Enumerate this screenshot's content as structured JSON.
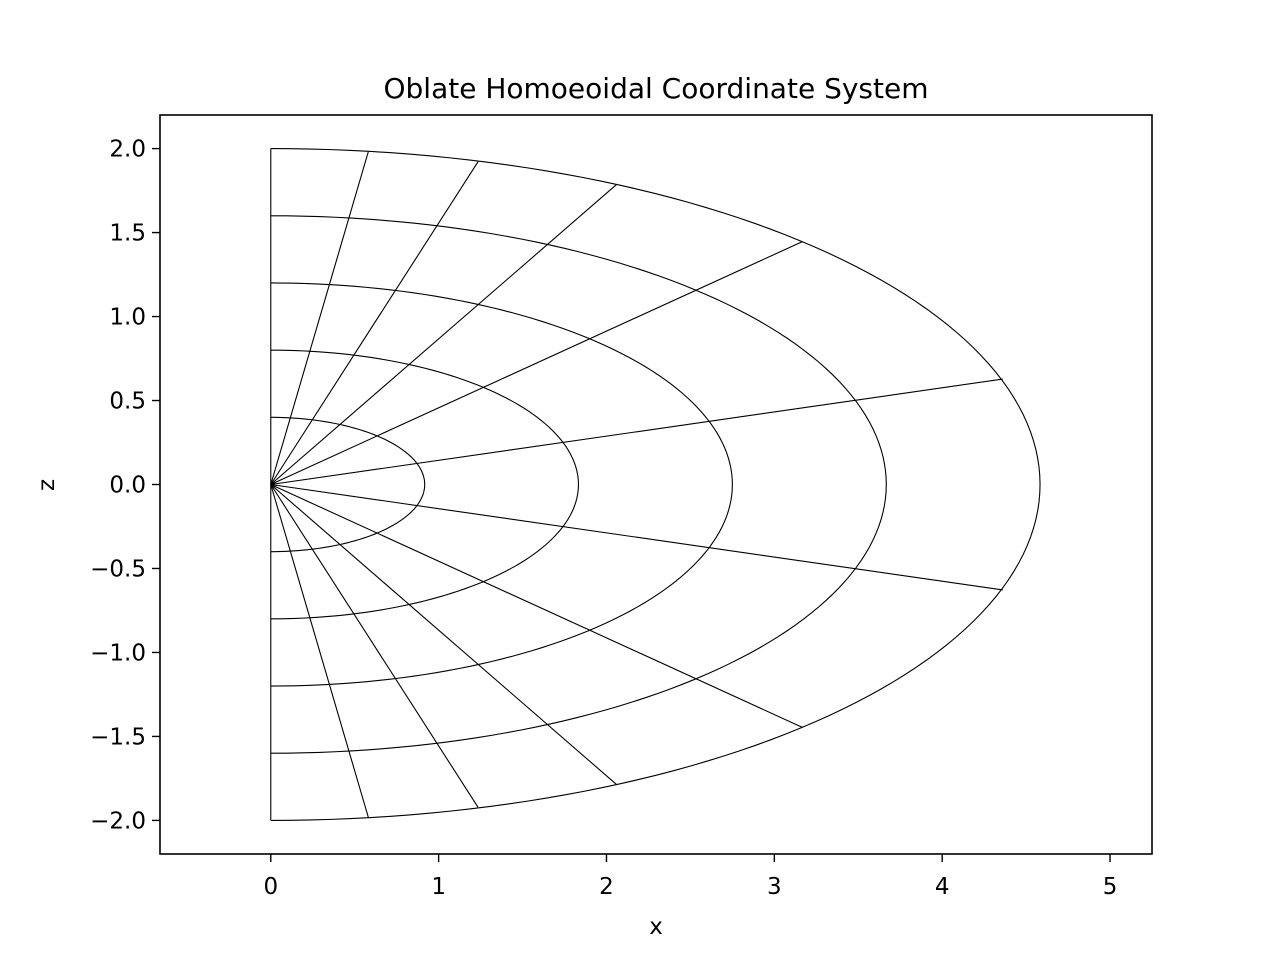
{
  "chart_data": {
    "type": "line",
    "title": "Oblate Homoeoidal Coordinate System",
    "xlabel": "x",
    "ylabel": "z",
    "xlim": [
      -0.66,
      5.25
    ],
    "ylim": [
      -2.2,
      2.2
    ],
    "xticks": [
      0,
      1,
      2,
      3,
      4,
      5
    ],
    "yticks": [
      -2.0,
      -1.5,
      -1.0,
      -0.5,
      0.0,
      0.5,
      1.0,
      1.5,
      2.0
    ],
    "xtick_labels": [
      "0",
      "1",
      "2",
      "3",
      "4",
      "5"
    ],
    "ytick_labels": [
      "−2.0",
      "−1.5",
      "−1.0",
      "−0.5",
      "0.0",
      "0.5",
      "1.0",
      "1.5",
      "2.0"
    ],
    "grid": false,
    "line_color": "#000000",
    "shells": {
      "description_values": "semi-axes of homoeoidal ellipses (x-extent a, z-extent c), right half",
      "a": [
        0.917,
        1.833,
        2.75,
        3.667,
        4.583
      ],
      "c": [
        0.4,
        0.8,
        1.2,
        1.6,
        2.0
      ]
    },
    "rays": {
      "origin": [
        0,
        0
      ],
      "endpoints": [
        [
          0.0,
          2.0
        ],
        [
          0.581,
          1.981
        ],
        [
          1.235,
          1.922
        ],
        [
          2.062,
          1.788
        ],
        [
          3.167,
          1.446
        ],
        [
          4.361,
          0.628
        ],
        [
          4.361,
          -0.628
        ],
        [
          3.167,
          -1.446
        ],
        [
          2.062,
          -1.788
        ],
        [
          1.235,
          -1.922
        ],
        [
          0.581,
          -1.981
        ],
        [
          0.0,
          -2.0
        ]
      ]
    }
  }
}
